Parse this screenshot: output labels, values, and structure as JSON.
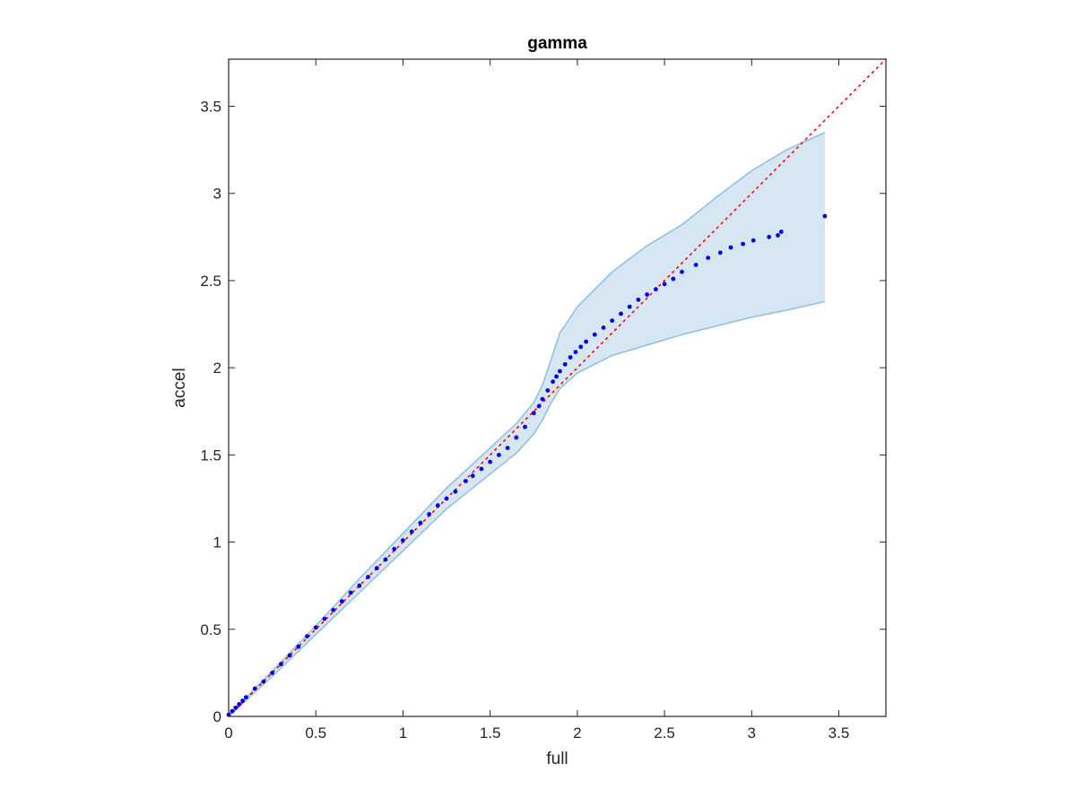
{
  "chart_data": {
    "type": "scatter",
    "title": "gamma",
    "xlabel": "full",
    "ylabel": "accel",
    "xlim": [
      0,
      3.77
    ],
    "ylim": [
      0,
      3.77
    ],
    "xticks": [
      0,
      0.5,
      1,
      1.5,
      2,
      2.5,
      3,
      3.5
    ],
    "yticks": [
      0,
      0.5,
      1,
      1.5,
      2,
      2.5,
      3,
      3.5
    ],
    "xtick_labels": [
      "0",
      "0.5",
      "1",
      "1.5",
      "2",
      "2.5",
      "3",
      "3.5"
    ],
    "ytick_labels": [
      "0",
      "0.5",
      "1",
      "1.5",
      "2",
      "2.5",
      "3",
      "3.5"
    ],
    "grid": false,
    "colors": {
      "points": "#0000e6",
      "reference_line": "#ff0000",
      "band_fill": "#d6e6f2",
      "band_edge": "#8ebfe0",
      "axes": "#262626"
    },
    "reference_line": {
      "style": "dotted",
      "x": [
        0,
        3.77
      ],
      "y": [
        0,
        3.77
      ]
    },
    "confidence_band": {
      "x": [
        0,
        0.25,
        0.5,
        0.75,
        1.0,
        1.25,
        1.5,
        1.65,
        1.75,
        1.8,
        1.85,
        1.9,
        2.0,
        2.2,
        2.4,
        2.6,
        2.8,
        3.0,
        3.2,
        3.42
      ],
      "upper": [
        0.01,
        0.26,
        0.52,
        0.79,
        1.05,
        1.31,
        1.54,
        1.68,
        1.8,
        1.9,
        2.05,
        2.2,
        2.35,
        2.55,
        2.7,
        2.82,
        2.98,
        3.13,
        3.25,
        3.35
      ],
      "lower": [
        0.0,
        0.23,
        0.47,
        0.71,
        0.95,
        1.19,
        1.39,
        1.51,
        1.62,
        1.7,
        1.8,
        1.88,
        1.97,
        2.07,
        2.13,
        2.19,
        2.24,
        2.29,
        2.33,
        2.38
      ]
    },
    "series": [
      {
        "x": [
          0,
          0.02,
          0.04,
          0.06,
          0.08,
          0.1,
          0.15,
          0.2,
          0.25,
          0.3,
          0.35,
          0.4,
          0.45,
          0.5,
          0.55,
          0.6,
          0.65,
          0.7,
          0.75,
          0.8,
          0.85,
          0.9,
          0.95,
          1.0,
          1.05,
          1.1,
          1.15,
          1.2,
          1.25,
          1.3,
          1.36,
          1.4,
          1.45,
          1.5,
          1.55,
          1.6,
          1.65,
          1.7,
          1.75,
          1.78,
          1.8,
          1.83,
          1.86,
          1.88,
          1.9,
          1.93,
          1.96,
          1.99,
          2.02,
          2.05,
          2.1,
          2.15,
          2.2,
          2.25,
          2.3,
          2.35,
          2.4,
          2.45,
          2.5,
          2.55,
          2.6,
          2.68,
          2.75,
          2.82,
          2.88,
          2.95,
          3.01,
          3.1,
          3.15,
          3.17,
          3.42
        ],
        "y": [
          0.01,
          0.03,
          0.05,
          0.07,
          0.09,
          0.11,
          0.16,
          0.2,
          0.25,
          0.3,
          0.35,
          0.4,
          0.46,
          0.51,
          0.56,
          0.61,
          0.66,
          0.71,
          0.75,
          0.8,
          0.85,
          0.9,
          0.96,
          1.01,
          1.06,
          1.11,
          1.16,
          1.21,
          1.25,
          1.29,
          1.35,
          1.38,
          1.42,
          1.46,
          1.5,
          1.54,
          1.6,
          1.66,
          1.74,
          1.78,
          1.82,
          1.87,
          1.92,
          1.95,
          1.98,
          2.02,
          2.06,
          2.09,
          2.12,
          2.15,
          2.19,
          2.23,
          2.27,
          2.31,
          2.35,
          2.39,
          2.42,
          2.45,
          2.48,
          2.51,
          2.55,
          2.59,
          2.63,
          2.66,
          2.69,
          2.71,
          2.73,
          2.75,
          2.76,
          2.78,
          2.87
        ]
      }
    ]
  }
}
